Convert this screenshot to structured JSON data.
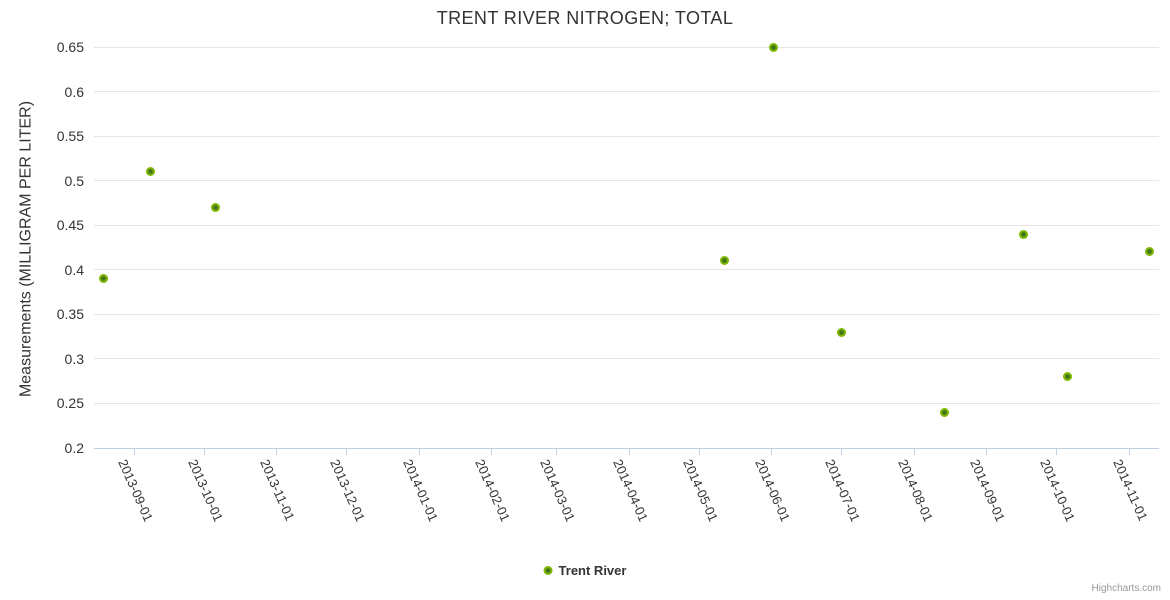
{
  "chart": {
    "credits_label": "Highcharts.com"
  },
  "chart_data": {
    "type": "scatter",
    "title": "TRENT RIVER NITROGEN; TOTAL",
    "xlabel": "",
    "ylabel": "Measurements (MILLIGRAM PER LITER)",
    "ylim": [
      0.2,
      0.65
    ],
    "y_tick_step": 0.05,
    "y_tick_labels": [
      "0.2",
      "0.25",
      "0.3",
      "0.35",
      "0.4",
      "0.45",
      "0.5",
      "0.55",
      "0.6",
      "0.65"
    ],
    "x_tick_labels": [
      "2013-09-01",
      "2013-10-01",
      "2013-11-01",
      "2013-12-01",
      "2014-01-01",
      "2014-02-01",
      "2014-03-01",
      "2014-04-01",
      "2014-05-01",
      "2014-06-01",
      "2014-07-01",
      "2014-08-01",
      "2014-09-01",
      "2014-10-01",
      "2014-11-01"
    ],
    "x_range": [
      "2013-08-15",
      "2014-11-14"
    ],
    "grid": true,
    "legend_position": "bottom-center",
    "series": [
      {
        "name": "Trent River",
        "marker_color": "#7cb502",
        "marker_center_color": "#41731c",
        "points": [
          {
            "x": "2013-08-19",
            "y": 0.39
          },
          {
            "x": "2013-09-08",
            "y": 0.51
          },
          {
            "x": "2013-10-06",
            "y": 0.47
          },
          {
            "x": "2014-05-12",
            "y": 0.41
          },
          {
            "x": "2014-06-02",
            "y": 0.65
          },
          {
            "x": "2014-07-01",
            "y": 0.33
          },
          {
            "x": "2014-08-14",
            "y": 0.24
          },
          {
            "x": "2014-09-17",
            "y": 0.44
          },
          {
            "x": "2014-10-06",
            "y": 0.28
          },
          {
            "x": "2014-11-10",
            "y": 0.42
          }
        ]
      }
    ]
  },
  "colors": {
    "background": "#ffffff",
    "title_text": "#333333",
    "axis_label_text": "#333333",
    "gridline": "#e6e6e6",
    "axis_line": "#c0d0e0",
    "marker": "#7cb502",
    "legend_text": "#333333",
    "credits_text": "#999999"
  }
}
